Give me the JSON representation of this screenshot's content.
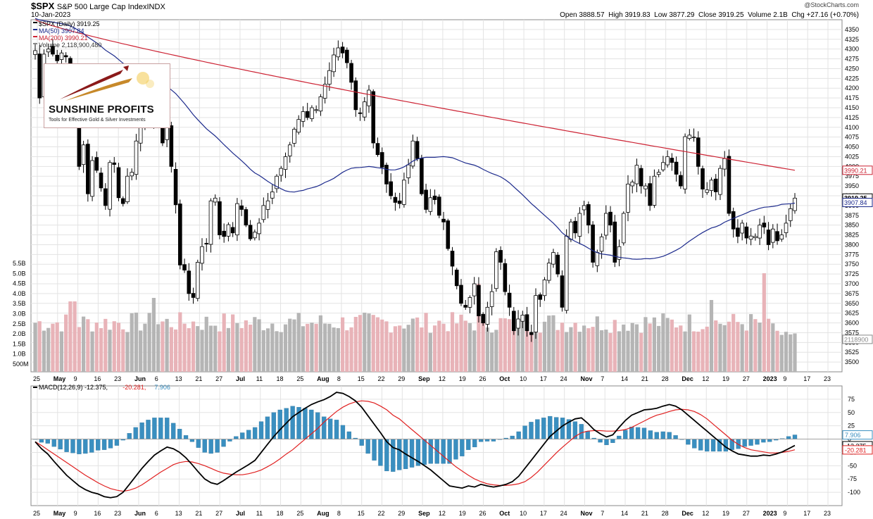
{
  "header": {
    "symbol": "$SPX",
    "name": "S&P 500 Large Cap Index",
    "exchange": "INDX",
    "date": "10-Jan-2023",
    "credit": "@StockCharts.com",
    "ohlc": [
      {
        "label": "Open",
        "value": "3888.57"
      },
      {
        "label": "High",
        "value": "3919.83"
      },
      {
        "label": "Low",
        "value": "3877.29"
      },
      {
        "label": "Close",
        "value": "3919.25"
      },
      {
        "label": "Volume",
        "value": "2.1B"
      },
      {
        "label": "Chg",
        "value": "+27.16 (+0.70%)"
      }
    ]
  },
  "logo": {
    "name": "SUNSHINE PROFITS",
    "tagline": "Tools for Effective Gold & Silver Investments"
  },
  "colors": {
    "up": "#ffffff",
    "down": "#000000",
    "ma50": "#1c2a8c",
    "ma200": "#cc2233",
    "vol_up": "#b5b5b5",
    "vol_down": "#e8b3b8",
    "macd": "#000000",
    "signal": "#e02020",
    "hist": "#3a8fc0",
    "grid": "#e3e3e3"
  },
  "chart_data": [
    {
      "type": "candlestick",
      "title": "$SPX (Daily) 3919.25",
      "legend": [
        {
          "label": "$SPX (Daily) 3919.25",
          "color": "#000000"
        },
        {
          "label": "MA(50) 3907.84",
          "color": "#1c2a8c"
        },
        {
          "label": "MA(200) 3990.21",
          "color": "#cc2233"
        },
        {
          "label": "Volume 2,118,900,480",
          "color": "#888888"
        }
      ],
      "ylim": [
        3475,
        4375
      ],
      "y_ticks": [
        3500,
        3525,
        3550,
        3575,
        3600,
        3625,
        3650,
        3675,
        3700,
        3725,
        3750,
        3775,
        3800,
        3825,
        3850,
        3875,
        3900,
        3925,
        3950,
        3975,
        4000,
        4025,
        4050,
        4075,
        4100,
        4125,
        4150,
        4175,
        4200,
        4225,
        4250,
        4275,
        4300,
        4325,
        4350
      ],
      "volume_ticks": [
        "500M",
        "1.0B",
        "1.5B",
        "2.0B",
        "2.5B",
        "3.0B",
        "3.5B",
        "4.0B",
        "4.5B",
        "5.0B",
        "5.5B"
      ],
      "last_price_tags": [
        {
          "label": "3990.21",
          "value": 3990.21,
          "color": "#cc2233"
        },
        {
          "label": "3919.25",
          "value": 3919.25,
          "color": "#000000"
        },
        {
          "label": "3907.84",
          "value": 3907.84,
          "color": "#1c2a8c"
        },
        {
          "label": "2118900",
          "value": 3558,
          "color": "#888888"
        }
      ],
      "x_labels": [
        "25",
        "May",
        "9",
        "16",
        "23",
        "Jun",
        "6",
        "13",
        "21",
        "27",
        "Jul",
        "11",
        "18",
        "25",
        "Aug",
        "8",
        "15",
        "22",
        "29",
        "Sep",
        "12",
        "19",
        "26",
        "Oct",
        "10",
        "17",
        "24",
        "Nov",
        "7",
        "14",
        "21",
        "28",
        "Dec",
        "12",
        "19",
        "27",
        "2023",
        "9",
        "17",
        "23"
      ],
      "closes": [
        4296,
        4175,
        4287,
        4300,
        4287,
        4270,
        4290,
        4280,
        4180,
        4125,
        4000,
        4055,
        3930,
        4015,
        3990,
        3945,
        3900,
        4010,
        4005,
        3920,
        3905,
        3975,
        3985,
        4065,
        4110,
        4115,
        4120,
        4125,
        4125,
        4060,
        4100,
        4000,
        3902,
        3748,
        3735,
        3675,
        3665,
        3755,
        3795,
        3802,
        3912,
        3919,
        3825,
        3821,
        3851,
        3830,
        3905,
        3890,
        3850,
        3815,
        3832,
        3855,
        3900,
        3912,
        3935,
        3975,
        3995,
        4025,
        4055,
        4095,
        4120,
        4140,
        4125,
        4150,
        4145,
        4178,
        4210,
        4245,
        4285,
        4303,
        4290,
        4265,
        4215,
        4145,
        4135,
        4165,
        4195,
        4060,
        4030,
        3998,
        3955,
        3925,
        3908,
        3905,
        3965,
        4004,
        4065,
        4020,
        3930,
        3890,
        3920,
        3915,
        3875,
        3858,
        3790,
        3745,
        3695,
        3650,
        3640,
        3665,
        3700,
        3618,
        3600,
        3640,
        3680,
        3782,
        3755,
        3680,
        3640,
        3580,
        3610,
        3620,
        3580,
        3570,
        3670,
        3660,
        3710,
        3753,
        3780,
        3725,
        3640,
        3822,
        3858,
        3830,
        3880,
        3900,
        3850,
        3755,
        3780,
        3820,
        3880,
        3850,
        3755,
        3795,
        3880,
        3955,
        3960,
        4003,
        3950,
        3950,
        3900,
        3975,
        3985,
        4010,
        4025,
        4010,
        3980,
        3950,
        4076,
        4080,
        4075,
        4000,
        3942,
        3940,
        3965,
        3935,
        3995,
        4020,
        3880,
        3840,
        3821,
        3855,
        3817,
        3822,
        3821,
        3850,
        3845,
        3800,
        3840,
        3810,
        3825,
        3855,
        3892,
        3919
      ]
    },
    {
      "type": "line",
      "title": "MACD(12,26,9) -12.375, -20.281, 7.906",
      "legend": [
        {
          "label": "MACD(12,26,9) -12.375",
          "color": "#000000"
        },
        {
          "label": "-20.281",
          "color": "#e02020"
        },
        {
          "label": "7.906",
          "color": "#3a8fc0"
        }
      ],
      "ylim": [
        -125,
        100
      ],
      "y_ticks": [
        75,
        50,
        25,
        0,
        -25,
        -50,
        -75,
        -100
      ],
      "last_value_tags": [
        {
          "label": "7.906",
          "value": 7.906,
          "color": "#3a8fc0"
        },
        {
          "label": "-12.375",
          "value": -12.375,
          "color": "#000000"
        },
        {
          "label": "-20.281",
          "value": -20.281,
          "color": "#e02020"
        }
      ],
      "series": [
        {
          "name": "MACD",
          "values": [
            -5,
            -18,
            -28,
            -42,
            -55,
            -68,
            -78,
            -88,
            -95,
            -100,
            -103,
            -108,
            -110,
            -108,
            -100,
            -85,
            -70,
            -55,
            -42,
            -30,
            -22,
            -15,
            -18,
            -25,
            -35,
            -48,
            -62,
            -75,
            -82,
            -85,
            -78,
            -70,
            -62,
            -55,
            -48,
            -40,
            -25,
            -10,
            5,
            18,
            30,
            42,
            50,
            58,
            65,
            70,
            74,
            80,
            88,
            86,
            80,
            72,
            60,
            44,
            28,
            12,
            -5,
            -16,
            -20,
            -28,
            -35,
            -42,
            -50,
            -58,
            -68,
            -78,
            -88,
            -90,
            -92,
            -88,
            -90,
            -85,
            -88,
            -90,
            -88,
            -85,
            -80,
            -70,
            -55,
            -40,
            -25,
            -10,
            5,
            15,
            25,
            32,
            38,
            40,
            30,
            18,
            10,
            4,
            8,
            22,
            35,
            45,
            50,
            55,
            56,
            58,
            62,
            65,
            62,
            55,
            45,
            35,
            25,
            15,
            5,
            -5,
            -15,
            -22,
            -28,
            -30,
            -32,
            -32,
            -30,
            -31,
            -28,
            -24,
            -18,
            -12
          ]
        },
        {
          "name": "Signal",
          "values": [
            -5,
            -12,
            -20,
            -28,
            -36,
            -44,
            -52,
            -60,
            -68,
            -75,
            -82,
            -88,
            -93,
            -96,
            -98,
            -96,
            -92,
            -86,
            -78,
            -70,
            -62,
            -55,
            -48,
            -44,
            -42,
            -43,
            -46,
            -50,
            -55,
            -60,
            -64,
            -66,
            -67,
            -67,
            -65,
            -62,
            -58,
            -52,
            -45,
            -37,
            -28,
            -20,
            -10,
            0,
            10,
            20,
            32,
            42,
            52,
            60,
            66,
            70,
            72,
            71,
            68,
            62,
            55,
            45,
            38,
            28,
            18,
            8,
            -2,
            -12,
            -22,
            -32,
            -42,
            -52,
            -60,
            -68,
            -75,
            -80,
            -84,
            -86,
            -87,
            -87,
            -86,
            -84,
            -80,
            -72,
            -62,
            -50,
            -38,
            -26,
            -15,
            -5,
            5,
            12,
            15,
            16,
            16,
            15,
            15,
            16,
            18,
            22,
            28,
            34,
            40,
            45,
            48,
            52,
            55,
            56,
            55,
            52,
            46,
            38,
            28,
            18,
            8,
            -2,
            -10,
            -16,
            -20,
            -22,
            -24,
            -26,
            -26,
            -25,
            -23,
            -20
          ]
        },
        {
          "name": "Histogram",
          "values": [
            0,
            -6,
            -8,
            -14,
            -19,
            -24,
            -26,
            -28,
            -27,
            -25,
            -21,
            -20,
            -17,
            -12,
            -2,
            11,
            22,
            31,
            36,
            40,
            40,
            40,
            30,
            19,
            7,
            -5,
            -16,
            -25,
            -27,
            -25,
            -14,
            -4,
            5,
            12,
            17,
            22,
            33,
            42,
            50,
            55,
            58,
            62,
            60,
            58,
            55,
            50,
            42,
            38,
            36,
            26,
            14,
            2,
            -12,
            -27,
            -40,
            -50,
            -60,
            -61,
            -58,
            -56,
            -53,
            -50,
            -48,
            -46,
            -46,
            -46,
            -46,
            -38,
            -32,
            -20,
            -15,
            -5,
            -4,
            -4,
            -1,
            2,
            6,
            14,
            25,
            32,
            37,
            40,
            43,
            41,
            40,
            37,
            33,
            28,
            15,
            2,
            -6,
            -11,
            -7,
            6,
            17,
            23,
            22,
            21,
            16,
            13,
            14,
            13,
            7,
            -1,
            -10,
            -17,
            -21,
            -23,
            -23,
            -23,
            -23,
            -20,
            -18,
            -14,
            -12,
            -10,
            -6,
            -5,
            -2,
            1,
            5,
            8
          ]
        }
      ],
      "x_labels": [
        "25",
        "May",
        "9",
        "16",
        "23",
        "Jun",
        "6",
        "13",
        "21",
        "27",
        "Jul",
        "11",
        "18",
        "25",
        "Aug",
        "8",
        "15",
        "22",
        "29",
        "Sep",
        "12",
        "19",
        "26",
        "Oct",
        "10",
        "17",
        "24",
        "Nov",
        "7",
        "14",
        "21",
        "28",
        "Dec",
        "12",
        "19",
        "27",
        "2023",
        "9",
        "17",
        "23"
      ]
    }
  ]
}
